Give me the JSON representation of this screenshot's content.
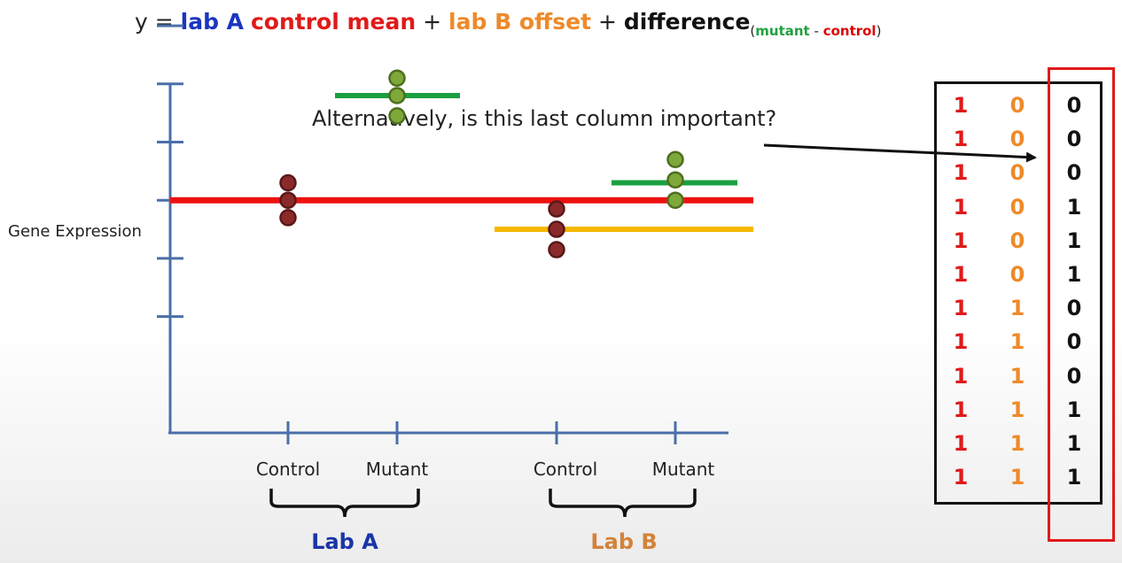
{
  "equation": {
    "prefix": "y = ",
    "term1": "lab A",
    "term2": "control mean",
    "plus1": " + ",
    "term3": "lab B offset",
    "plus2": " + ",
    "term4": "difference",
    "sub_open": "(",
    "sub_mutant": "mutant",
    "sub_minus": " - ",
    "sub_control": "control",
    "sub_close": ")",
    "colors": {
      "lab_a": "#1a35c0",
      "control_mean": "#e01a1a",
      "lab_b": "#ee8a2a",
      "difference": "#111111"
    }
  },
  "annotation": "Alternatively, is this last column important?",
  "chart_data": {
    "type": "scatter",
    "ylabel": "Gene Expression",
    "groups": [
      {
        "label": "Control",
        "lab": "Lab A",
        "values": [
          3.3,
          3.0,
          2.7
        ],
        "color": "#8b2a2a"
      },
      {
        "label": "Mutant",
        "lab": "Lab A",
        "values": [
          5.1,
          4.8,
          4.45
        ],
        "color": "#7ea83a"
      },
      {
        "label": "Control",
        "lab": "Lab B",
        "values": [
          2.85,
          2.5,
          2.15
        ],
        "color": "#8b2a2a"
      },
      {
        "label": "Mutant",
        "lab": "Lab B",
        "values": [
          3.7,
          3.35,
          3.0
        ],
        "color": "#7ea83a"
      }
    ],
    "lines": [
      {
        "name": "control mean",
        "y": 3.0,
        "color": "#ee1111"
      },
      {
        "name": "lab A mutant mean",
        "y": 4.8,
        "color": "#1aa040"
      },
      {
        "name": "lab B control mean",
        "y": 2.5,
        "color": "#f5b800"
      },
      {
        "name": "lab B mutant mean",
        "y": 3.3,
        "color": "#1aa040"
      }
    ],
    "lab_labels": [
      {
        "name": "Lab A",
        "color": "#1a35a8"
      },
      {
        "name": "Lab B",
        "color": "#d4823a"
      }
    ],
    "ylim": [
      -1.0,
      6.0
    ],
    "yticks": [
      1,
      2,
      3,
      4,
      5,
      6
    ],
    "grid": false
  },
  "matrix": {
    "rows": [
      [
        "1",
        "0",
        "0"
      ],
      [
        "1",
        "0",
        "0"
      ],
      [
        "1",
        "0",
        "0"
      ],
      [
        "1",
        "0",
        "1"
      ],
      [
        "1",
        "0",
        "1"
      ],
      [
        "1",
        "0",
        "1"
      ],
      [
        "1",
        "1",
        "0"
      ],
      [
        "1",
        "1",
        "0"
      ],
      [
        "1",
        "1",
        "0"
      ],
      [
        "1",
        "1",
        "1"
      ],
      [
        "1",
        "1",
        "1"
      ],
      [
        "1",
        "1",
        "1"
      ]
    ]
  }
}
